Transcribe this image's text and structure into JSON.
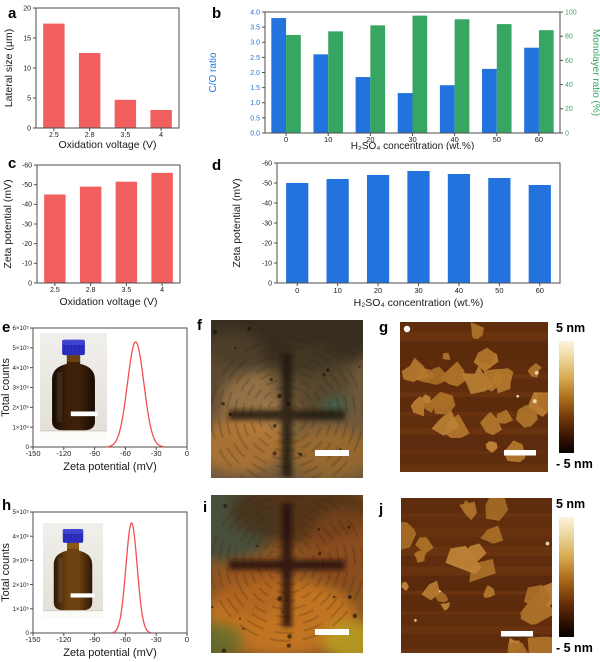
{
  "panels": {
    "a": {
      "letter": "a"
    },
    "b": {
      "letter": "b"
    },
    "c": {
      "letter": "c"
    },
    "d": {
      "letter": "d"
    },
    "e": {
      "letter": "e",
      "inset": "sample-bottle-photo"
    },
    "f": {
      "letter": "f",
      "kind": "polarized-optical-micrograph",
      "scale_bar": true
    },
    "g": {
      "letter": "g",
      "kind": "afm-height-image",
      "colorbar_top": "5 nm",
      "colorbar_bottom": "- 5 nm",
      "scale_bar": true
    },
    "h": {
      "letter": "h",
      "inset": "sample-bottle-photo"
    },
    "i": {
      "letter": "i",
      "kind": "polarized-optical-micrograph",
      "scale_bar": true
    },
    "j": {
      "letter": "j",
      "kind": "afm-height-image",
      "colorbar_top": "5 nm",
      "colorbar_bottom": "- 5 nm",
      "scale_bar": true
    }
  },
  "colors": {
    "red_bar": "#f15f5f",
    "blue_bar": "#2273de",
    "green_bar": "#38a663",
    "curve_red": "#f25050",
    "frame": "#4d4d4d"
  },
  "chart_data": [
    {
      "id": "a",
      "type": "bar",
      "panel": "a",
      "categories": [
        "2.5",
        "2.8",
        "3.5",
        "4"
      ],
      "values": [
        17.4,
        12.5,
        4.7,
        3.0
      ],
      "xlabel": "Oxidation voltage (V)",
      "ylabel": "Lateral size (μm)",
      "ylim": [
        0,
        20
      ],
      "yticks": {
        "values": [
          0,
          5,
          10,
          15,
          20
        ],
        "labels": [
          "0",
          "5",
          "10",
          "15",
          "20"
        ]
      },
      "bar_color": "#f15f5f"
    },
    {
      "id": "b",
      "type": "grouped-bar-dual-axis",
      "panel": "b",
      "categories": [
        "0",
        "10",
        "20",
        "30",
        "40",
        "50",
        "60"
      ],
      "xlabel": "H₂SO₄ concentration (wt.%)",
      "series": [
        {
          "name": "C/O ratio",
          "axis": "left",
          "color": "#2273de",
          "values": [
            3.8,
            2.6,
            1.85,
            1.32,
            1.58,
            2.12,
            2.82
          ]
        },
        {
          "name": "Monolayer ratio (%)",
          "axis": "right",
          "color": "#38a663",
          "values": [
            81,
            84,
            89,
            97,
            94,
            90,
            85
          ]
        }
      ],
      "left_axis": {
        "label": "C/O ratio",
        "lim": [
          0,
          4
        ],
        "ticks": {
          "values": [
            0,
            0.5,
            1,
            1.5,
            2,
            2.5,
            3,
            3.5,
            4
          ],
          "labels": [
            "0.0",
            "0.5",
            "1.0",
            "1.5",
            "2.0",
            "2.5",
            "3.0",
            "3.5",
            "4.0"
          ]
        }
      },
      "right_axis": {
        "label": "Monolayer ratio (%)",
        "lim": [
          0,
          100
        ],
        "ticks": {
          "values": [
            0,
            20,
            40,
            60,
            80,
            100
          ],
          "labels": [
            "0",
            "20",
            "40",
            "60",
            "80",
            "100"
          ]
        }
      }
    },
    {
      "id": "c",
      "type": "bar",
      "panel": "c",
      "categories": [
        "2.5",
        "2.8",
        "3.5",
        "4"
      ],
      "values": [
        -45,
        -49,
        -51.5,
        -56
      ],
      "xlabel": "Oxidation voltage (V)",
      "ylabel": "Zeta potential (mV)",
      "ylim": [
        0,
        -60
      ],
      "yticks": {
        "values": [
          0,
          -10,
          -20,
          -30,
          -40,
          -50,
          -60
        ],
        "labels": [
          "0",
          "-10",
          "-20",
          "-30",
          "-40",
          "-50",
          "-60"
        ]
      },
      "bar_color": "#f15f5f"
    },
    {
      "id": "d",
      "type": "bar",
      "panel": "d",
      "categories": [
        "0",
        "10",
        "20",
        "30",
        "40",
        "50",
        "60"
      ],
      "values": [
        -50,
        -52,
        -54,
        -56,
        -54.5,
        -52.5,
        -49
      ],
      "xlabel": "H₂SO₄ concentration (wt.%)",
      "ylabel": "Zeta potential (mV)",
      "ylim": [
        0,
        -60
      ],
      "yticks": {
        "values": [
          0,
          -10,
          -20,
          -30,
          -40,
          -50,
          -60
        ],
        "labels": [
          "0",
          "-10",
          "-20",
          "-30",
          "-40",
          "-50",
          "-60"
        ]
      },
      "bar_color": "#2273de"
    },
    {
      "id": "e",
      "type": "line",
      "panel": "e",
      "xlabel": "Zeta potential (mV)",
      "ylabel": "Total counts",
      "xlim": [
        -150,
        0
      ],
      "xticks": {
        "values": [
          -150,
          -120,
          -90,
          -60,
          -30,
          0
        ],
        "labels": [
          "-150",
          "-120",
          "-90",
          "-60",
          "-30",
          "0"
        ]
      },
      "ylim": [
        0,
        600000
      ],
      "yticks": {
        "values": [
          0,
          100000,
          200000,
          300000,
          400000,
          500000,
          600000
        ],
        "labels": [
          "0",
          "1×10⁵",
          "2×10⁵",
          "3×10⁵",
          "4×10⁵",
          "5×10⁵",
          "6×10⁵"
        ]
      },
      "curve": {
        "shape": "gaussian",
        "center": -50,
        "sigma": 8,
        "peak": 530000
      },
      "line_color": "#f25050"
    },
    {
      "id": "h",
      "type": "line",
      "panel": "h",
      "xlabel": "Zeta potential (mV)",
      "ylabel": "Total counts",
      "xlim": [
        -150,
        0
      ],
      "xticks": {
        "values": [
          -150,
          -120,
          -90,
          -60,
          -30,
          0
        ],
        "labels": [
          "-150",
          "-120",
          "-90",
          "-60",
          "-30",
          "0"
        ]
      },
      "ylim": [
        0,
        500000
      ],
      "yticks": {
        "values": [
          0,
          100000,
          200000,
          300000,
          400000,
          500000
        ],
        "labels": [
          "0",
          "1×10⁵",
          "2×10⁵",
          "3×10⁵",
          "4×10⁵",
          "5×10⁵"
        ]
      },
      "curve": {
        "shape": "gaussian",
        "center": -54,
        "sigma": 5.5,
        "peak": 455000
      },
      "line_color": "#f25050"
    }
  ]
}
